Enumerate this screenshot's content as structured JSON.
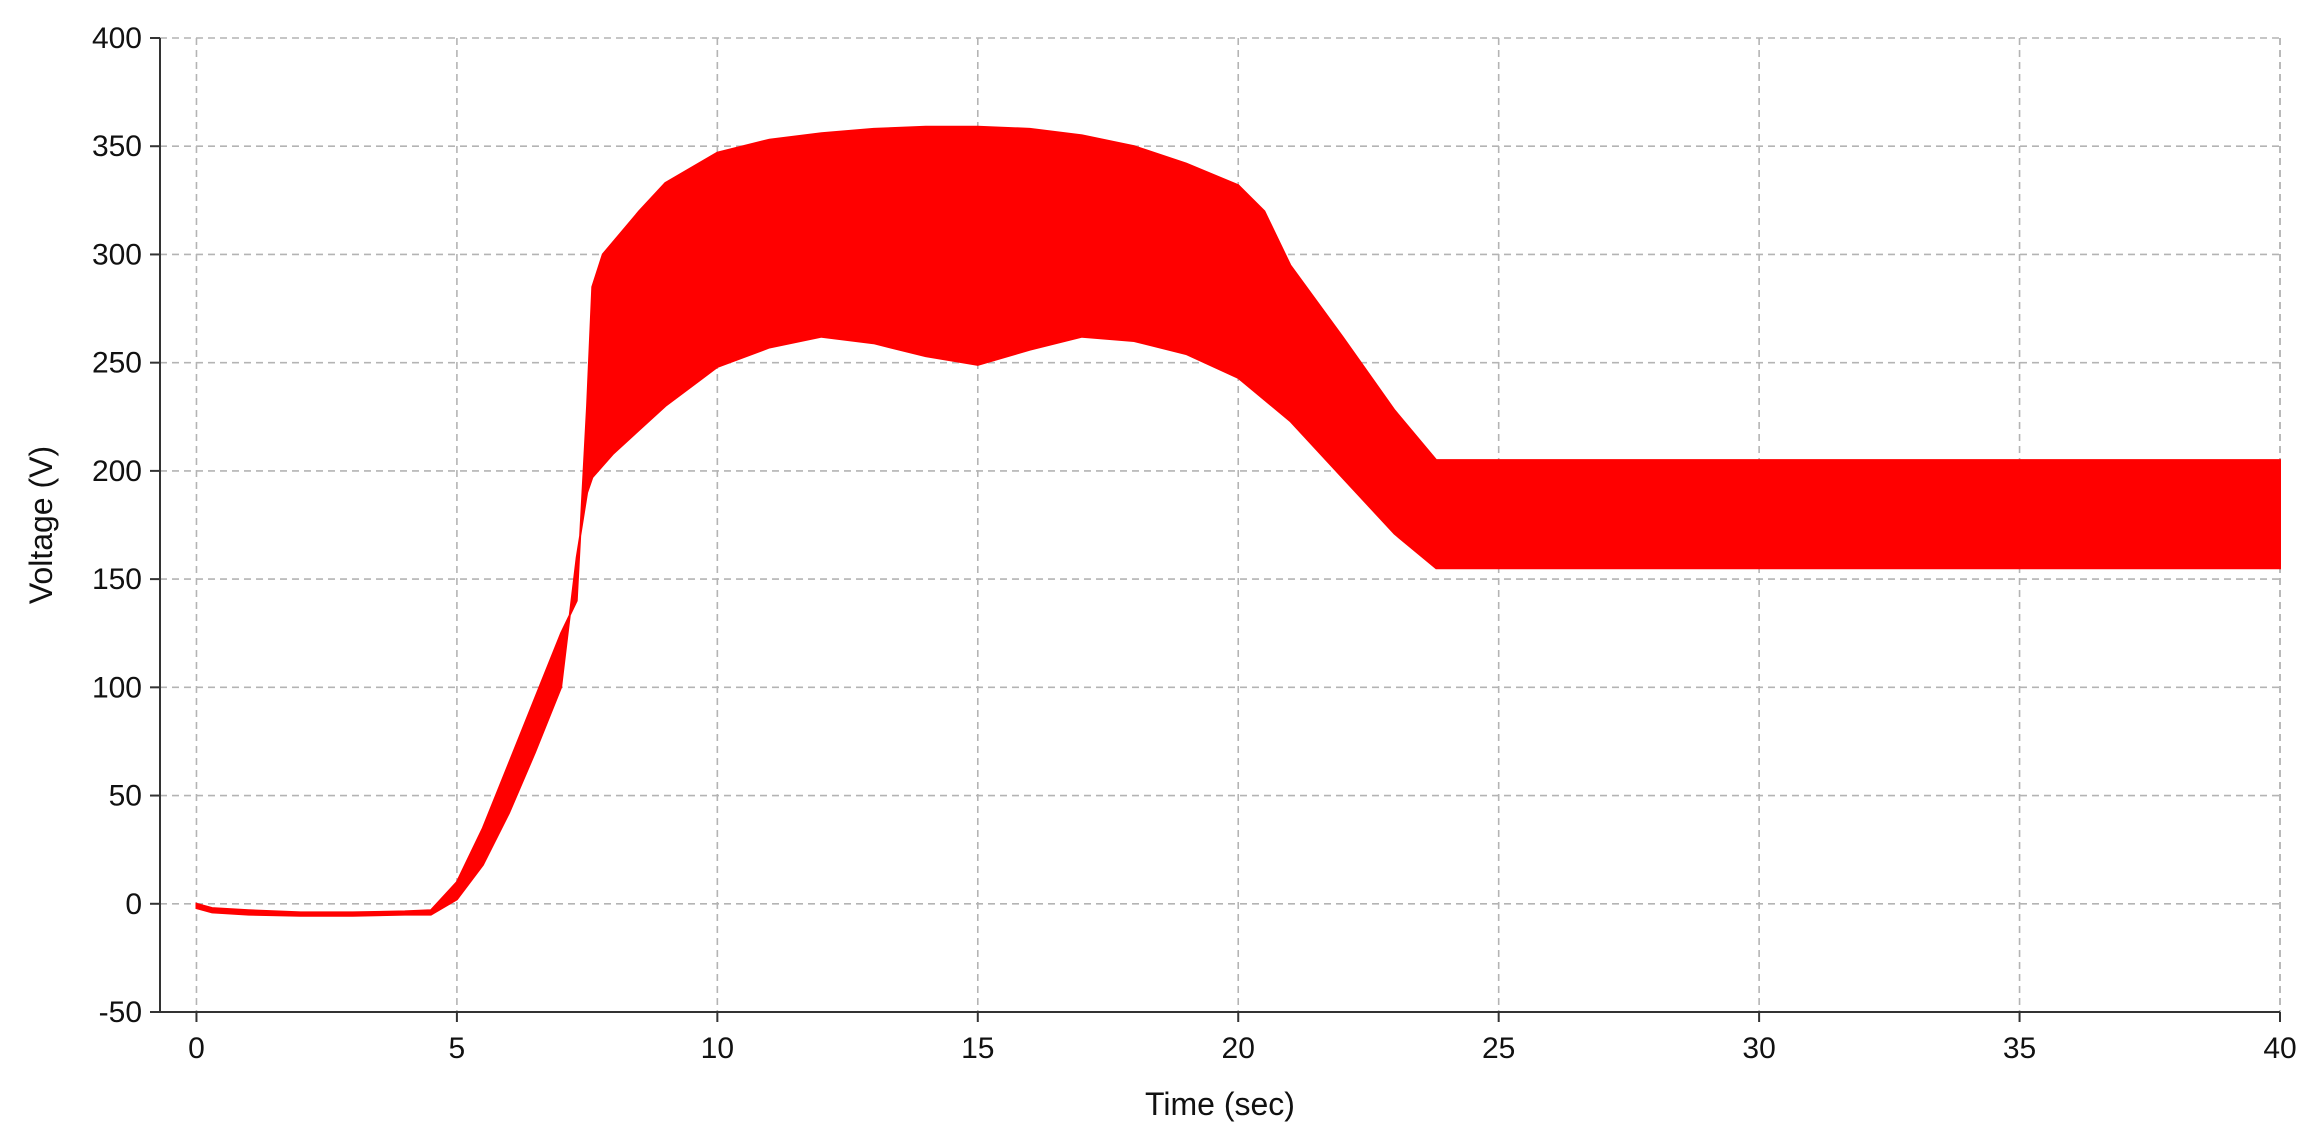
{
  "chart_data": {
    "type": "area",
    "xlabel": "Time (sec)",
    "ylabel": "Voltage (V)",
    "xlim": [
      -0.7,
      40
    ],
    "ylim": [
      -50,
      400
    ],
    "x_ticks": [
      0,
      5,
      10,
      15,
      20,
      25,
      30,
      35,
      40
    ],
    "y_ticks": [
      -50,
      0,
      50,
      100,
      150,
      200,
      250,
      300,
      350,
      400
    ],
    "grid": true,
    "series_color": "#ff0000",
    "series": [
      {
        "style": "filled oscillation envelope",
        "upper": {
          "x": [
            0,
            0.3,
            1,
            2,
            3,
            4,
            4.5,
            5,
            5.5,
            6,
            6.5,
            7,
            7.3,
            7.5,
            7.6,
            7.8,
            8.5,
            9,
            10,
            11,
            12,
            13,
            14,
            15,
            16,
            17,
            18,
            19,
            20,
            20.5,
            21,
            22,
            23,
            23.8,
            25,
            30,
            35,
            40
          ],
          "y": [
            0,
            -2,
            -3,
            -4,
            -4,
            -3.5,
            -3,
            10,
            35,
            65,
            95,
            125,
            140,
            230,
            285,
            300,
            320,
            333,
            347,
            353,
            356,
            358,
            359,
            359,
            358,
            355,
            350,
            342,
            332,
            320,
            295,
            262,
            228,
            205,
            205,
            205,
            205,
            205
          ]
        },
        "lower": {
          "x": [
            0,
            0.3,
            1,
            2,
            3,
            4,
            4.5,
            5,
            5.5,
            6,
            6.5,
            7,
            7.3,
            7.5,
            7.6,
            8,
            9,
            10,
            11,
            12,
            13,
            14,
            15,
            16,
            17,
            18,
            19,
            20,
            21,
            22,
            23,
            23.8,
            25,
            30,
            35,
            40
          ],
          "y": [
            -2,
            -4,
            -5,
            -5.5,
            -5.5,
            -5,
            -5,
            2,
            18,
            42,
            70,
            100,
            160,
            190,
            197,
            208,
            230,
            248,
            257,
            262,
            259,
            253,
            249,
            256,
            262,
            260,
            254,
            243,
            223,
            197,
            171,
            155,
            155,
            155,
            155,
            155
          ]
        }
      }
    ]
  }
}
